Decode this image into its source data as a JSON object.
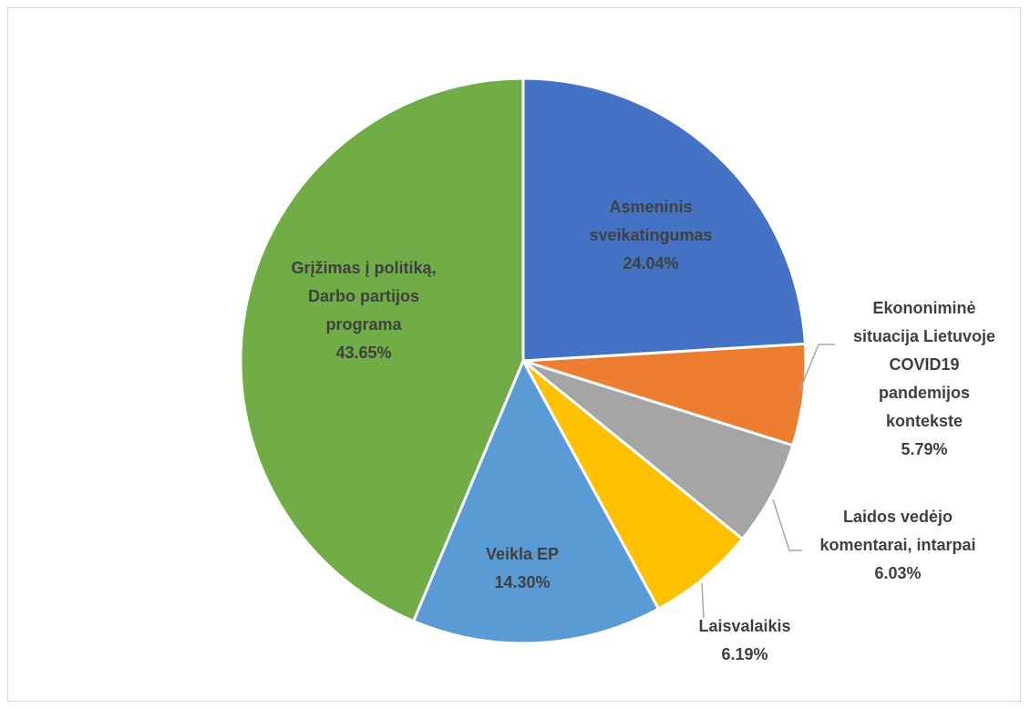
{
  "chart_data": {
    "type": "pie",
    "title": "",
    "slices": [
      {
        "label": "Asmeninis sveikatingumas",
        "value": 24.04,
        "value_label": "24.04%",
        "color": "#4472C4",
        "label_inside": true,
        "label_lines": [
          "Asmeninis",
          "sveikatingumas",
          "24.04%"
        ]
      },
      {
        "label": "Ekononiminė situacija Lietuvoje COVID19 pandemijos kontekste",
        "value": 5.79,
        "value_label": "5.79%",
        "color": "#ED7D31",
        "label_inside": false,
        "label_lines": [
          "Ekononiminė",
          "situacija Lietuvoje",
          "COVID19",
          "pandemijos",
          "kontekste",
          "5.79%"
        ]
      },
      {
        "label": "Laidos vedėjo komentarai, intarpai",
        "value": 6.03,
        "value_label": "6.03%",
        "color": "#A5A5A5",
        "label_inside": false,
        "label_lines": [
          "Laidos vedėjo",
          "komentarai, intarpai",
          "6.03%"
        ]
      },
      {
        "label": "Laisvalaikis",
        "value": 6.19,
        "value_label": "6.19%",
        "color": "#FFC000",
        "label_inside": false,
        "label_lines": [
          "Laisvalaikis",
          "6.19%"
        ]
      },
      {
        "label": "Veikla EP",
        "value": 14.3,
        "value_label": "14.30%",
        "color": "#5B9BD5",
        "label_inside": true,
        "label_lines": [
          "Veikla EP",
          "14.30%"
        ]
      },
      {
        "label": "Grįžimas į politiką, Darbo partijos programa",
        "value": 43.65,
        "value_label": "43.65%",
        "color": "#70AD47",
        "label_inside": true,
        "label_lines": [
          "Grįžimas į politiką,",
          "Darbo partijos",
          "programa",
          "43.65%"
        ]
      }
    ],
    "start_angle_deg": 0,
    "direction": "clockwise",
    "legend": "none",
    "label_color": "#404040",
    "leader_line_color": "#A6A6A6"
  }
}
